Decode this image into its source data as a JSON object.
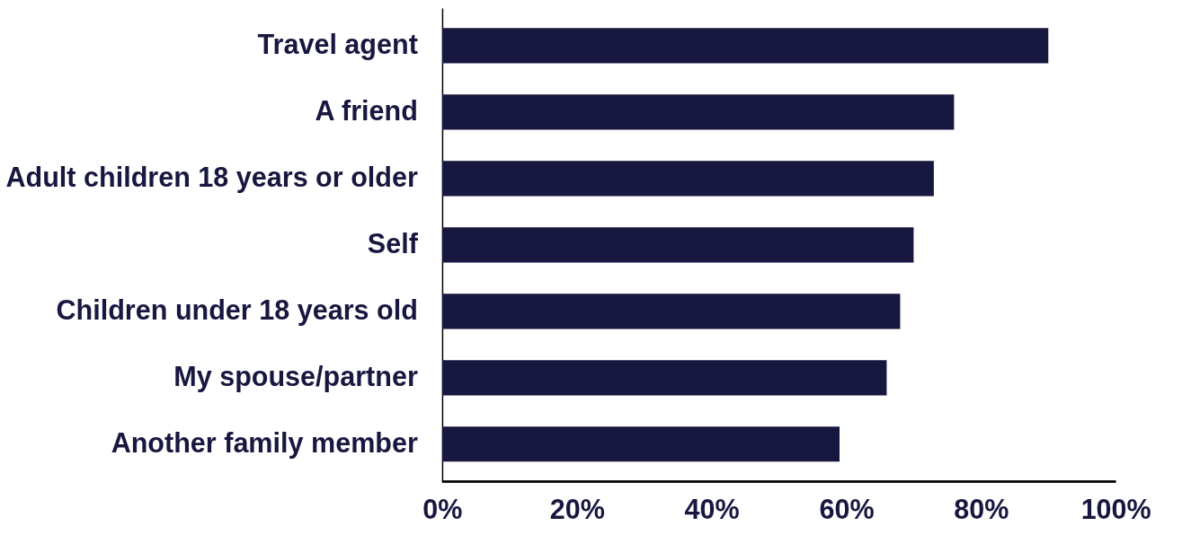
{
  "chart_data": {
    "type": "bar",
    "orientation": "horizontal",
    "categories": [
      "Travel agent",
      "A friend",
      "Adult children 18 years or older",
      "Self",
      "Children under 18 years old",
      "My spouse/partner",
      "Another family member"
    ],
    "values": [
      90,
      76,
      73,
      70,
      68,
      66,
      59
    ],
    "color": "#171740",
    "xlim": [
      0,
      100
    ],
    "xticks": [
      {
        "value": 0,
        "label": "0%"
      },
      {
        "value": 20,
        "label": "20%"
      },
      {
        "value": 40,
        "label": "40%"
      },
      {
        "value": 60,
        "label": "60%"
      },
      {
        "value": 80,
        "label": "80%"
      },
      {
        "value": 100,
        "label": "100%"
      }
    ],
    "grid": false
  }
}
